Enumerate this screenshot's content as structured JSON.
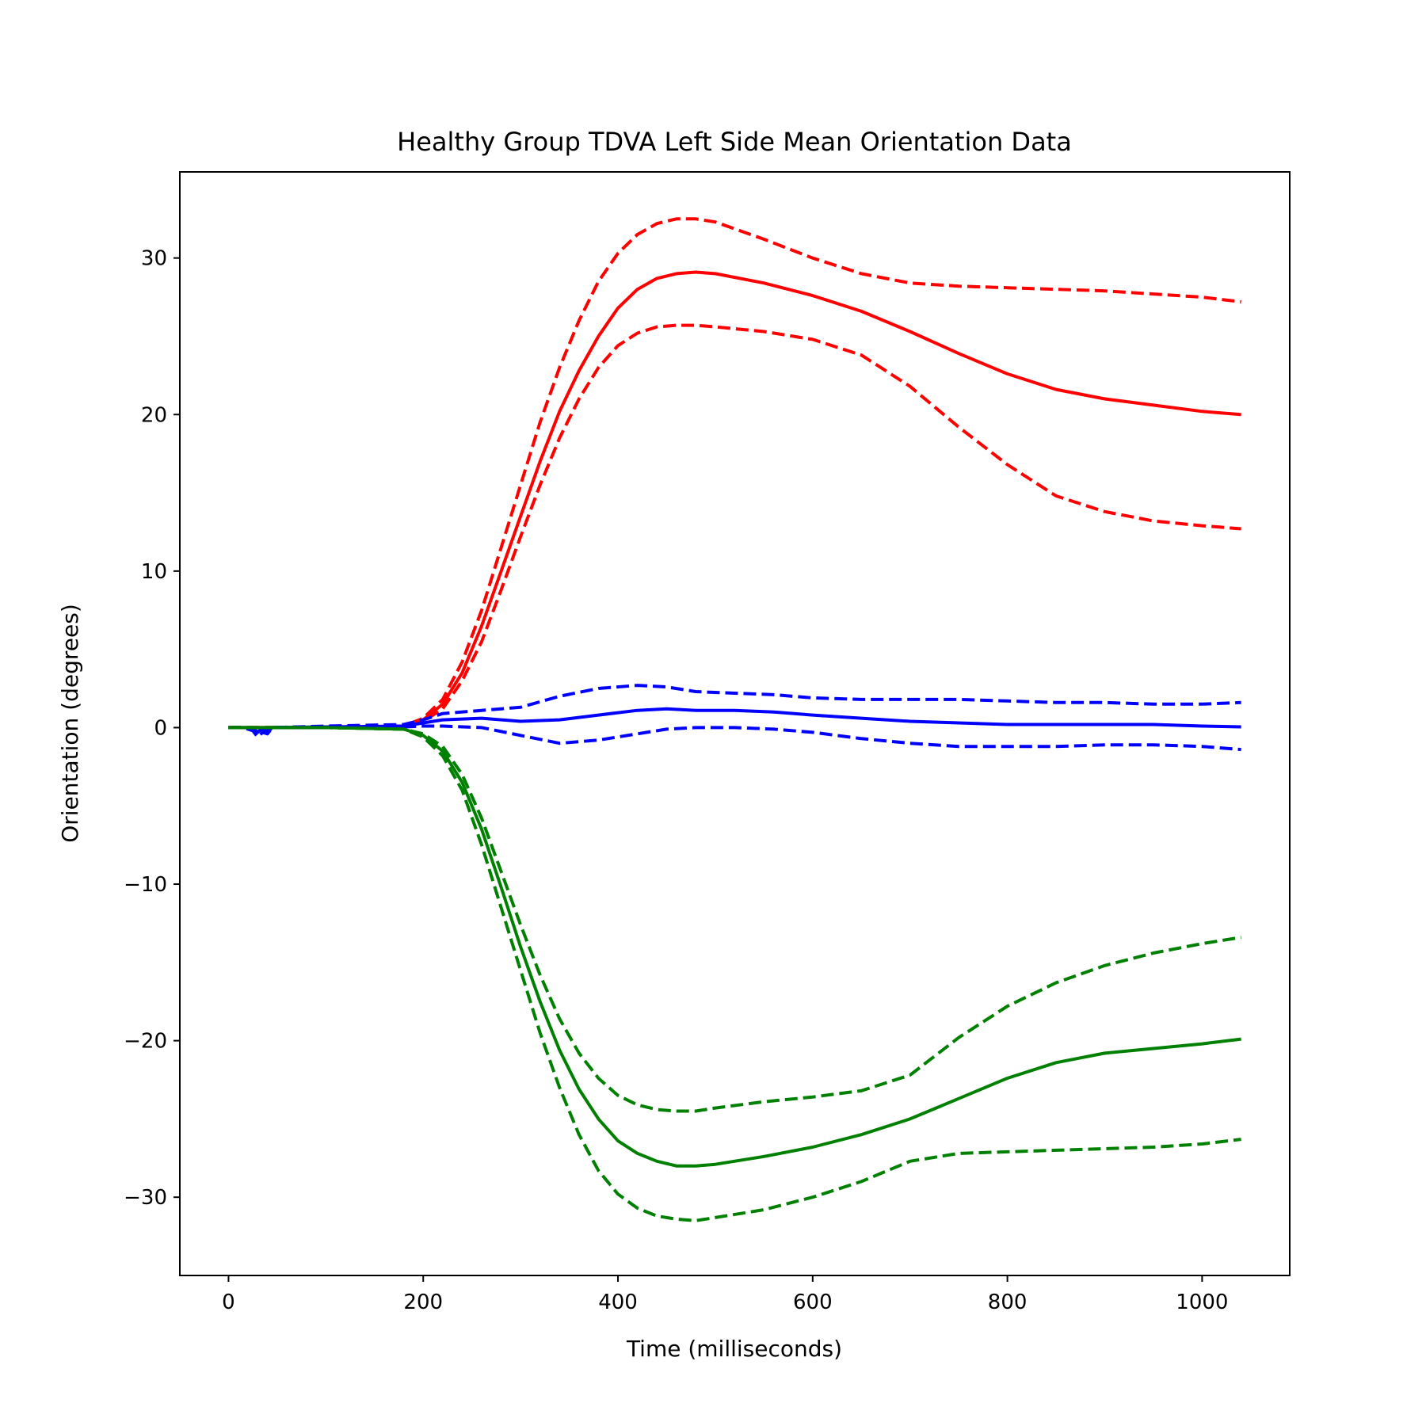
{
  "chart_data": {
    "type": "line",
    "title": "Healthy Group TDVA Left Side Mean Orientation Data",
    "xlabel": "Time (milliseconds)",
    "ylabel": "Orientation (degrees)",
    "xlim": [
      -50,
      1090
    ],
    "ylim": [
      -35,
      35.5
    ],
    "xticks": [
      0,
      200,
      400,
      600,
      800,
      1000
    ],
    "yticks": [
      -30,
      -20,
      -10,
      0,
      10,
      20,
      30
    ],
    "xtick_labels": [
      "0",
      "200",
      "400",
      "600",
      "800",
      "1000"
    ],
    "ytick_labels": [
      "−30",
      "−20",
      "−10",
      "0",
      "10",
      "20",
      "30"
    ],
    "grid": false,
    "legend": "none",
    "series": [
      {
        "color": "#ff0000",
        "style": "solid",
        "x": [
          0,
          100,
          180,
          200,
          220,
          240,
          260,
          280,
          300,
          320,
          340,
          360,
          380,
          400,
          420,
          440,
          460,
          480,
          500,
          550,
          600,
          650,
          700,
          750,
          800,
          850,
          900,
          950,
          1000,
          1040
        ],
        "y": [
          0,
          0,
          0.1,
          0.5,
          1.5,
          3.5,
          6.5,
          10,
          13.5,
          17,
          20.2,
          22.8,
          25,
          26.8,
          28,
          28.7,
          29,
          29.1,
          29,
          28.4,
          27.6,
          26.6,
          25.3,
          23.9,
          22.6,
          21.6,
          21,
          20.6,
          20.2,
          20
        ]
      },
      {
        "color": "#ff0000",
        "style": "dashed",
        "x": [
          0,
          100,
          180,
          200,
          220,
          240,
          260,
          280,
          300,
          320,
          340,
          360,
          380,
          400,
          420,
          440,
          460,
          480,
          500,
          550,
          600,
          650,
          700,
          750,
          800,
          850,
          900,
          950,
          1000,
          1040
        ],
        "y": [
          0,
          0,
          0.1,
          0.6,
          1.8,
          4.2,
          7.5,
          11.5,
          15.5,
          19.5,
          23,
          26,
          28.5,
          30.3,
          31.5,
          32.2,
          32.5,
          32.5,
          32.3,
          31.2,
          30,
          29,
          28.4,
          28.2,
          28.1,
          28,
          27.9,
          27.7,
          27.5,
          27.2
        ]
      },
      {
        "color": "#ff0000",
        "style": "dashed",
        "x": [
          0,
          100,
          180,
          200,
          220,
          240,
          260,
          280,
          300,
          320,
          340,
          360,
          380,
          400,
          420,
          440,
          460,
          480,
          500,
          550,
          600,
          650,
          700,
          750,
          800,
          850,
          900,
          950,
          1000,
          1040
        ],
        "y": [
          0,
          0,
          0.1,
          0.4,
          1.2,
          3,
          5.5,
          8.8,
          12.2,
          15.5,
          18.5,
          21,
          23,
          24.4,
          25.2,
          25.6,
          25.7,
          25.7,
          25.6,
          25.3,
          24.8,
          23.8,
          21.8,
          19.2,
          16.8,
          14.8,
          13.8,
          13.2,
          12.9,
          12.7
        ]
      },
      {
        "color": "#0000ff",
        "style": "solid",
        "x": [
          0,
          15,
          25,
          30,
          35,
          40,
          45,
          100,
          180,
          200,
          220,
          260,
          300,
          340,
          380,
          420,
          450,
          480,
          520,
          560,
          600,
          650,
          700,
          750,
          800,
          850,
          900,
          950,
          1000,
          1040
        ],
        "y": [
          0,
          0,
          0,
          -0.3,
          0,
          -0.2,
          0,
          0.05,
          0.1,
          0.3,
          0.5,
          0.6,
          0.4,
          0.5,
          0.8,
          1.1,
          1.2,
          1.1,
          1.1,
          1,
          0.8,
          0.6,
          0.4,
          0.3,
          0.2,
          0.2,
          0.2,
          0.2,
          0.1,
          0.05
        ]
      },
      {
        "color": "#0000ff",
        "style": "dashed",
        "x": [
          0,
          15,
          25,
          30,
          35,
          40,
          45,
          100,
          180,
          200,
          220,
          260,
          300,
          340,
          380,
          420,
          450,
          480,
          520,
          560,
          600,
          650,
          700,
          750,
          800,
          850,
          900,
          950,
          1000,
          1040
        ],
        "y": [
          0,
          0,
          -0.2,
          -0.6,
          -0.3,
          -0.4,
          0,
          0.1,
          0.2,
          0.5,
          0.9,
          1.1,
          1.3,
          2,
          2.5,
          2.7,
          2.6,
          2.3,
          2.2,
          2.1,
          1.9,
          1.8,
          1.8,
          1.8,
          1.7,
          1.6,
          1.6,
          1.5,
          1.5,
          1.6
        ]
      },
      {
        "color": "#0000ff",
        "style": "dashed",
        "x": [
          0,
          15,
          25,
          30,
          35,
          40,
          45,
          100,
          180,
          200,
          220,
          260,
          300,
          340,
          380,
          420,
          450,
          480,
          520,
          560,
          600,
          650,
          700,
          750,
          800,
          850,
          900,
          950,
          1000,
          1040
        ],
        "y": [
          0,
          0,
          -0.1,
          -0.5,
          -0.2,
          -0.3,
          0,
          0,
          0.05,
          0.1,
          0.1,
          0,
          -0.5,
          -1,
          -0.8,
          -0.4,
          -0.1,
          0,
          0,
          -0.1,
          -0.3,
          -0.7,
          -1,
          -1.2,
          -1.2,
          -1.2,
          -1.1,
          -1.1,
          -1.2,
          -1.4
        ]
      },
      {
        "color": "#008000",
        "style": "solid",
        "x": [
          0,
          100,
          180,
          200,
          220,
          240,
          260,
          280,
          300,
          320,
          340,
          360,
          380,
          400,
          420,
          440,
          460,
          480,
          500,
          550,
          600,
          650,
          700,
          750,
          800,
          850,
          900,
          950,
          1000,
          1040
        ],
        "y": [
          0,
          0,
          -0.1,
          -0.5,
          -1.5,
          -3.5,
          -6.5,
          -10.2,
          -14,
          -17.5,
          -20.6,
          -23.1,
          -25,
          -26.4,
          -27.2,
          -27.7,
          -28,
          -28,
          -27.9,
          -27.4,
          -26.8,
          -26,
          -25,
          -23.7,
          -22.4,
          -21.4,
          -20.8,
          -20.5,
          -20.2,
          -19.9
        ]
      },
      {
        "color": "#008000",
        "style": "dashed",
        "x": [
          0,
          100,
          180,
          200,
          220,
          240,
          260,
          280,
          300,
          320,
          340,
          360,
          380,
          400,
          420,
          440,
          460,
          480,
          500,
          550,
          600,
          650,
          700,
          750,
          800,
          850,
          900,
          950,
          1000,
          1040
        ],
        "y": [
          0,
          0,
          -0.1,
          -0.6,
          -1.8,
          -4,
          -7.5,
          -11.5,
          -15.5,
          -19.5,
          -23,
          -26,
          -28.3,
          -29.8,
          -30.7,
          -31.2,
          -31.4,
          -31.5,
          -31.3,
          -30.8,
          -30,
          -29,
          -27.7,
          -27.2,
          -27.1,
          -27,
          -26.9,
          -26.8,
          -26.6,
          -26.3
        ]
      },
      {
        "color": "#008000",
        "style": "dashed",
        "x": [
          0,
          100,
          180,
          200,
          220,
          240,
          260,
          280,
          300,
          320,
          340,
          360,
          380,
          400,
          420,
          440,
          460,
          480,
          500,
          550,
          600,
          650,
          700,
          750,
          800,
          850,
          900,
          950,
          1000,
          1040
        ],
        "y": [
          0,
          0,
          -0.1,
          -0.4,
          -1.2,
          -3,
          -5.8,
          -9.2,
          -12.6,
          -15.8,
          -18.6,
          -20.8,
          -22.4,
          -23.5,
          -24.1,
          -24.4,
          -24.5,
          -24.5,
          -24.3,
          -23.9,
          -23.6,
          -23.2,
          -22.2,
          -19.8,
          -17.8,
          -16.3,
          -15.2,
          -14.4,
          -13.8,
          -13.4
        ]
      }
    ]
  }
}
